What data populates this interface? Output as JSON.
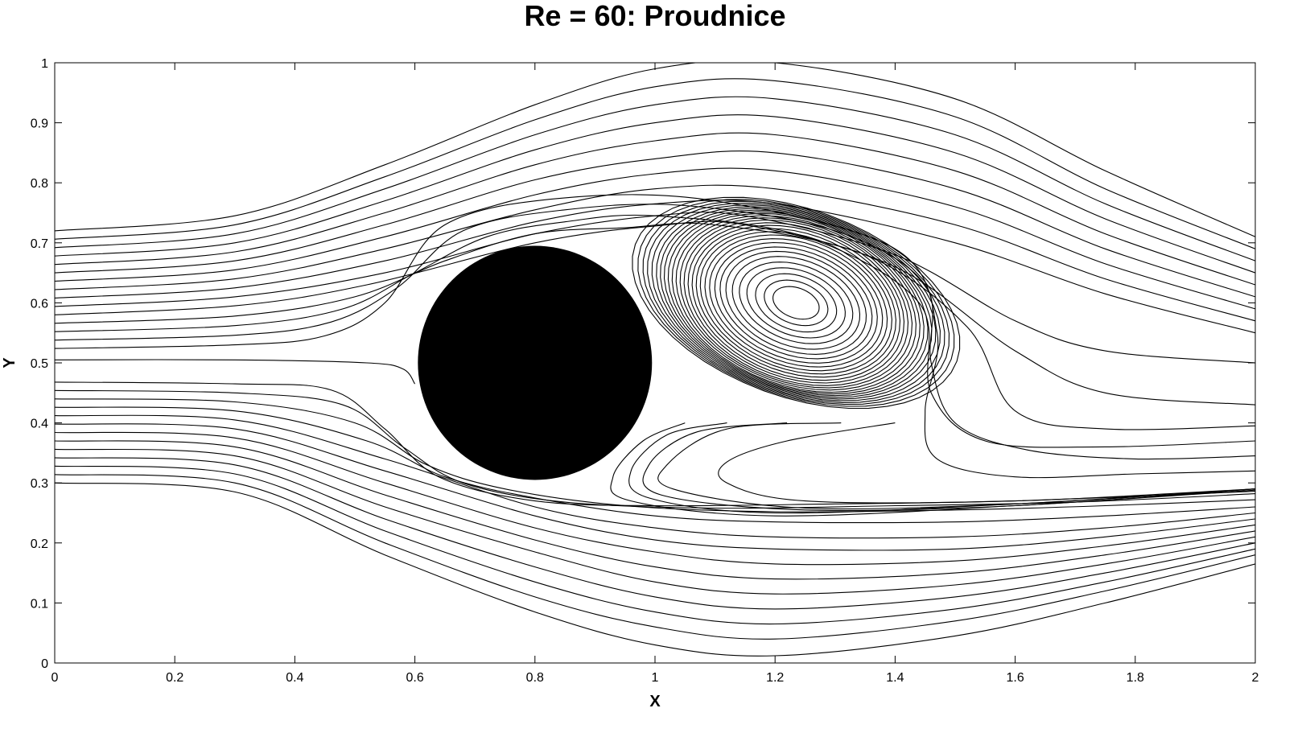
{
  "chart_data": {
    "type": "streamline",
    "title": "Re = 60: Proudnice",
    "xlabel": "X",
    "ylabel": "Y",
    "xlim": [
      0,
      2
    ],
    "ylim": [
      0,
      1
    ],
    "xticks": [
      "0",
      "0.2",
      "0.4",
      "0.6",
      "0.8",
      "1",
      "1.2",
      "1.4",
      "1.6",
      "1.8",
      "2"
    ],
    "yticks": [
      "0",
      "0.1",
      "0.2",
      "0.3",
      "0.4",
      "0.5",
      "0.6",
      "0.7",
      "0.8",
      "0.9",
      "1"
    ],
    "grid": false,
    "obstacle": {
      "shape": "circle",
      "center": [
        0.8,
        0.5
      ],
      "radius": 0.195,
      "color": "#000000"
    },
    "upper_streamlines": [
      [
        [
          0,
          0.72
        ],
        [
          0.3,
          0.745
        ],
        [
          0.55,
          0.83
        ],
        [
          0.8,
          0.93
        ],
        [
          1.0,
          0.99
        ],
        [
          1.2,
          1.0
        ],
        [
          1.5,
          0.94
        ],
        [
          1.75,
          0.82
        ],
        [
          2.0,
          0.71
        ]
      ],
      [
        [
          0,
          0.706
        ],
        [
          0.3,
          0.73
        ],
        [
          0.55,
          0.81
        ],
        [
          0.8,
          0.905
        ],
        [
          1.0,
          0.96
        ],
        [
          1.2,
          0.97
        ],
        [
          1.5,
          0.91
        ],
        [
          1.75,
          0.79
        ],
        [
          2.0,
          0.69
        ]
      ],
      [
        [
          0,
          0.692
        ],
        [
          0.3,
          0.715
        ],
        [
          0.55,
          0.79
        ],
        [
          0.8,
          0.88
        ],
        [
          1.0,
          0.93
        ],
        [
          1.2,
          0.94
        ],
        [
          1.5,
          0.88
        ],
        [
          1.75,
          0.765
        ],
        [
          2.0,
          0.67
        ]
      ],
      [
        [
          0,
          0.678
        ],
        [
          0.3,
          0.7
        ],
        [
          0.55,
          0.77
        ],
        [
          0.8,
          0.855
        ],
        [
          1.0,
          0.9
        ],
        [
          1.2,
          0.91
        ],
        [
          1.5,
          0.85
        ],
        [
          1.75,
          0.74
        ],
        [
          2.0,
          0.65
        ]
      ],
      [
        [
          0,
          0.664
        ],
        [
          0.3,
          0.685
        ],
        [
          0.55,
          0.75
        ],
        [
          0.8,
          0.83
        ],
        [
          1.0,
          0.87
        ],
        [
          1.2,
          0.88
        ],
        [
          1.5,
          0.82
        ],
        [
          1.75,
          0.715
        ],
        [
          2.0,
          0.63
        ]
      ],
      [
        [
          0,
          0.65
        ],
        [
          0.3,
          0.67
        ],
        [
          0.55,
          0.73
        ],
        [
          0.8,
          0.805
        ],
        [
          1.0,
          0.84
        ],
        [
          1.2,
          0.85
        ],
        [
          1.5,
          0.79
        ],
        [
          1.75,
          0.69
        ],
        [
          2.0,
          0.61
        ]
      ],
      [
        [
          0,
          0.636
        ],
        [
          0.3,
          0.655
        ],
        [
          0.55,
          0.71
        ],
        [
          0.8,
          0.78
        ],
        [
          1.0,
          0.815
        ],
        [
          1.2,
          0.82
        ],
        [
          1.5,
          0.76
        ],
        [
          1.75,
          0.665
        ],
        [
          2.0,
          0.59
        ]
      ],
      [
        [
          0,
          0.622
        ],
        [
          0.3,
          0.64
        ],
        [
          0.55,
          0.69
        ],
        [
          0.8,
          0.755
        ],
        [
          1.0,
          0.79
        ],
        [
          1.2,
          0.79
        ],
        [
          1.5,
          0.73
        ],
        [
          1.75,
          0.64
        ],
        [
          2.0,
          0.57
        ]
      ],
      [
        [
          0,
          0.608
        ],
        [
          0.3,
          0.625
        ],
        [
          0.55,
          0.67
        ],
        [
          0.8,
          0.735
        ],
        [
          1.0,
          0.765
        ],
        [
          1.2,
          0.765
        ],
        [
          1.5,
          0.7
        ],
        [
          1.75,
          0.615
        ],
        [
          2.0,
          0.55
        ]
      ],
      [
        [
          0,
          0.594
        ],
        [
          0.3,
          0.61
        ],
        [
          0.55,
          0.65
        ],
        [
          0.8,
          0.715
        ],
        [
          1.0,
          0.745
        ],
        [
          1.15,
          0.745
        ],
        [
          1.4,
          0.68
        ],
        [
          1.6,
          0.57
        ],
        [
          1.75,
          0.52
        ],
        [
          2.0,
          0.5
        ]
      ],
      [
        [
          0,
          0.58
        ],
        [
          0.3,
          0.595
        ],
        [
          0.52,
          0.63
        ],
        [
          0.8,
          0.7
        ],
        [
          1.0,
          0.728
        ],
        [
          1.15,
          0.73
        ],
        [
          1.4,
          0.66
        ],
        [
          1.6,
          0.52
        ],
        [
          1.75,
          0.45
        ],
        [
          2.0,
          0.43
        ]
      ],
      [
        [
          0,
          0.566
        ],
        [
          0.3,
          0.578
        ],
        [
          0.5,
          0.61
        ],
        [
          0.65,
          0.67
        ],
        [
          0.8,
          0.715
        ],
        [
          0.95,
          0.725
        ],
        [
          1.1,
          0.73
        ],
        [
          1.35,
          0.68
        ],
        [
          1.52,
          0.56
        ],
        [
          1.6,
          0.42
        ],
        [
          1.75,
          0.39
        ],
        [
          2.0,
          0.395
        ]
      ],
      [
        [
          0,
          0.552
        ],
        [
          0.3,
          0.562
        ],
        [
          0.48,
          0.59
        ],
        [
          0.6,
          0.65
        ],
        [
          0.72,
          0.71
        ],
        [
          0.85,
          0.735
        ],
        [
          1.0,
          0.745
        ],
        [
          1.25,
          0.71
        ],
        [
          1.44,
          0.6
        ],
        [
          1.46,
          0.45
        ],
        [
          1.55,
          0.37
        ],
        [
          1.75,
          0.36
        ],
        [
          2.0,
          0.37
        ]
      ],
      [
        [
          0,
          0.538
        ],
        [
          0.3,
          0.546
        ],
        [
          0.46,
          0.568
        ],
        [
          0.57,
          0.625
        ],
        [
          0.68,
          0.72
        ],
        [
          0.85,
          0.755
        ],
        [
          1.05,
          0.762
        ],
        [
          1.3,
          0.72
        ],
        [
          1.45,
          0.63
        ],
        [
          1.46,
          0.5
        ],
        [
          1.5,
          0.4
        ],
        [
          1.62,
          0.355
        ],
        [
          1.8,
          0.34
        ],
        [
          2.0,
          0.345
        ]
      ],
      [
        [
          0,
          0.524
        ],
        [
          0.3,
          0.53
        ],
        [
          0.45,
          0.545
        ],
        [
          0.55,
          0.6
        ],
        [
          0.65,
          0.73
        ],
        [
          0.85,
          0.775
        ],
        [
          1.1,
          0.77
        ],
        [
          1.4,
          0.69
        ],
        [
          1.47,
          0.55
        ],
        [
          1.45,
          0.42
        ],
        [
          1.47,
          0.34
        ],
        [
          1.6,
          0.31
        ],
        [
          1.8,
          0.315
        ],
        [
          2.0,
          0.32
        ]
      ]
    ],
    "lower_streamlines": [
      [
        [
          0,
          0.3
        ],
        [
          0.3,
          0.285
        ],
        [
          0.55,
          0.18
        ],
        [
          0.8,
          0.085
        ],
        [
          1.0,
          0.03
        ],
        [
          1.2,
          0.012
        ],
        [
          1.5,
          0.045
        ],
        [
          1.75,
          0.1
        ],
        [
          2.0,
          0.165
        ]
      ],
      [
        [
          0,
          0.314
        ],
        [
          0.3,
          0.3
        ],
        [
          0.55,
          0.2
        ],
        [
          0.8,
          0.11
        ],
        [
          1.0,
          0.06
        ],
        [
          1.2,
          0.04
        ],
        [
          1.5,
          0.07
        ],
        [
          1.75,
          0.12
        ],
        [
          2.0,
          0.18
        ]
      ],
      [
        [
          0,
          0.328
        ],
        [
          0.3,
          0.315
        ],
        [
          0.55,
          0.22
        ],
        [
          0.8,
          0.135
        ],
        [
          1.0,
          0.085
        ],
        [
          1.2,
          0.065
        ],
        [
          1.5,
          0.09
        ],
        [
          1.75,
          0.135
        ],
        [
          2.0,
          0.19
        ]
      ],
      [
        [
          0,
          0.342
        ],
        [
          0.3,
          0.33
        ],
        [
          0.55,
          0.24
        ],
        [
          0.8,
          0.16
        ],
        [
          1.0,
          0.11
        ],
        [
          1.2,
          0.09
        ],
        [
          1.5,
          0.11
        ],
        [
          1.75,
          0.15
        ],
        [
          2.0,
          0.2
        ]
      ],
      [
        [
          0,
          0.356
        ],
        [
          0.3,
          0.345
        ],
        [
          0.55,
          0.26
        ],
        [
          0.8,
          0.185
        ],
        [
          1.0,
          0.135
        ],
        [
          1.2,
          0.115
        ],
        [
          1.5,
          0.13
        ],
        [
          1.75,
          0.165
        ],
        [
          2.0,
          0.21
        ]
      ],
      [
        [
          0,
          0.37
        ],
        [
          0.3,
          0.36
        ],
        [
          0.55,
          0.28
        ],
        [
          0.8,
          0.205
        ],
        [
          1.0,
          0.16
        ],
        [
          1.2,
          0.14
        ],
        [
          1.5,
          0.15
        ],
        [
          1.75,
          0.18
        ],
        [
          2.0,
          0.22
        ]
      ],
      [
        [
          0,
          0.384
        ],
        [
          0.3,
          0.375
        ],
        [
          0.55,
          0.3
        ],
        [
          0.8,
          0.225
        ],
        [
          1.0,
          0.185
        ],
        [
          1.2,
          0.165
        ],
        [
          1.5,
          0.17
        ],
        [
          1.75,
          0.195
        ],
        [
          2.0,
          0.23
        ]
      ],
      [
        [
          0,
          0.398
        ],
        [
          0.3,
          0.39
        ],
        [
          0.55,
          0.32
        ],
        [
          0.8,
          0.245
        ],
        [
          1.0,
          0.205
        ],
        [
          1.2,
          0.19
        ],
        [
          1.5,
          0.19
        ],
        [
          1.75,
          0.21
        ],
        [
          2.0,
          0.24
        ]
      ],
      [
        [
          0,
          0.412
        ],
        [
          0.3,
          0.405
        ],
        [
          0.55,
          0.34
        ],
        [
          0.8,
          0.26
        ],
        [
          1.0,
          0.225
        ],
        [
          1.2,
          0.21
        ],
        [
          1.5,
          0.21
        ],
        [
          1.75,
          0.225
        ],
        [
          2.0,
          0.25
        ]
      ],
      [
        [
          0,
          0.426
        ],
        [
          0.3,
          0.42
        ],
        [
          0.52,
          0.37
        ],
        [
          0.65,
          0.31
        ],
        [
          0.8,
          0.275
        ],
        [
          1.0,
          0.245
        ],
        [
          1.2,
          0.235
        ],
        [
          1.5,
          0.235
        ],
        [
          1.75,
          0.245
        ],
        [
          2.0,
          0.26
        ]
      ],
      [
        [
          0,
          0.44
        ],
        [
          0.3,
          0.435
        ],
        [
          0.5,
          0.4
        ],
        [
          0.62,
          0.33
        ],
        [
          0.75,
          0.29
        ],
        [
          0.95,
          0.262
        ],
        [
          1.2,
          0.252
        ],
        [
          1.5,
          0.255
        ],
        [
          1.75,
          0.262
        ],
        [
          2.0,
          0.272
        ]
      ],
      [
        [
          0,
          0.454
        ],
        [
          0.3,
          0.45
        ],
        [
          0.48,
          0.43
        ],
        [
          0.58,
          0.36
        ],
        [
          0.68,
          0.3
        ],
        [
          0.85,
          0.268
        ],
        [
          1.1,
          0.258
        ],
        [
          1.4,
          0.262
        ],
        [
          1.7,
          0.268
        ],
        [
          2.0,
          0.282
        ]
      ],
      [
        [
          0,
          0.468
        ],
        [
          0.3,
          0.465
        ],
        [
          0.46,
          0.455
        ],
        [
          0.55,
          0.39
        ],
        [
          0.64,
          0.31
        ],
        [
          0.8,
          0.27
        ],
        [
          1.0,
          0.262
        ],
        [
          1.3,
          0.265
        ],
        [
          1.6,
          0.27
        ],
        [
          2.0,
          0.286
        ]
      ]
    ],
    "wake_streamlines": [
      [
        [
          1.05,
          0.4
        ],
        [
          0.98,
          0.37
        ],
        [
          0.93,
          0.31
        ],
        [
          0.96,
          0.27
        ],
        [
          1.2,
          0.245
        ],
        [
          1.6,
          0.262
        ],
        [
          2.0,
          0.288
        ]
      ],
      [
        [
          1.12,
          0.4
        ],
        [
          1.02,
          0.38
        ],
        [
          0.96,
          0.32
        ],
        [
          0.99,
          0.275
        ],
        [
          1.2,
          0.25
        ],
        [
          1.6,
          0.265
        ],
        [
          2.0,
          0.29
        ]
      ],
      [
        [
          1.22,
          0.4
        ],
        [
          1.07,
          0.385
        ],
        [
          0.99,
          0.33
        ],
        [
          1.01,
          0.28
        ],
        [
          1.25,
          0.255
        ],
        [
          1.6,
          0.262
        ],
        [
          2.0,
          0.29
        ]
      ],
      [
        [
          1.31,
          0.4
        ],
        [
          1.12,
          0.39
        ],
        [
          1.02,
          0.33
        ],
        [
          1.03,
          0.29
        ],
        [
          1.25,
          0.258
        ],
        [
          1.6,
          0.265
        ],
        [
          2.0,
          0.29
        ]
      ],
      [
        [
          1.4,
          0.4
        ],
        [
          1.22,
          0.37
        ],
        [
          1.12,
          0.335
        ],
        [
          1.12,
          0.3
        ],
        [
          1.25,
          0.27
        ],
        [
          1.6,
          0.27
        ],
        [
          2.0,
          0.29
        ]
      ],
      [
        [
          0.6,
          0.465
        ],
        [
          0.58,
          0.49
        ],
        [
          0.52,
          0.5
        ],
        [
          0.3,
          0.505
        ],
        [
          0,
          0.505
        ]
      ]
    ],
    "vortex": {
      "center": [
        1.235,
        0.6
      ],
      "loops": [
        {
          "a": 0.04,
          "b": 0.025
        },
        {
          "a": 0.055,
          "b": 0.035
        },
        {
          "a": 0.07,
          "b": 0.045
        },
        {
          "a": 0.085,
          "b": 0.054
        },
        {
          "a": 0.098,
          "b": 0.063
        },
        {
          "a": 0.11,
          "b": 0.072
        },
        {
          "a": 0.121,
          "b": 0.08
        },
        {
          "a": 0.131,
          "b": 0.087
        },
        {
          "a": 0.14,
          "b": 0.094
        },
        {
          "a": 0.149,
          "b": 0.1
        },
        {
          "a": 0.157,
          "b": 0.106
        },
        {
          "a": 0.165,
          "b": 0.111
        },
        {
          "a": 0.172,
          "b": 0.116
        },
        {
          "a": 0.179,
          "b": 0.121
        },
        {
          "a": 0.186,
          "b": 0.125
        },
        {
          "a": 0.193,
          "b": 0.129
        },
        {
          "a": 0.2,
          "b": 0.132
        },
        {
          "a": 0.207,
          "b": 0.135
        },
        {
          "a": 0.214,
          "b": 0.138
        },
        {
          "a": 0.221,
          "b": 0.14
        },
        {
          "a": 0.228,
          "b": 0.142
        },
        {
          "a": 0.235,
          "b": 0.144
        },
        {
          "a": 0.242,
          "b": 0.146
        },
        {
          "a": 0.25,
          "b": 0.148
        },
        {
          "a": 0.258,
          "b": 0.15
        },
        {
          "a": 0.266,
          "b": 0.152
        },
        {
          "a": 0.275,
          "b": 0.154
        },
        {
          "a": 0.285,
          "b": 0.156
        }
      ],
      "tilt_deg": -20
    }
  }
}
